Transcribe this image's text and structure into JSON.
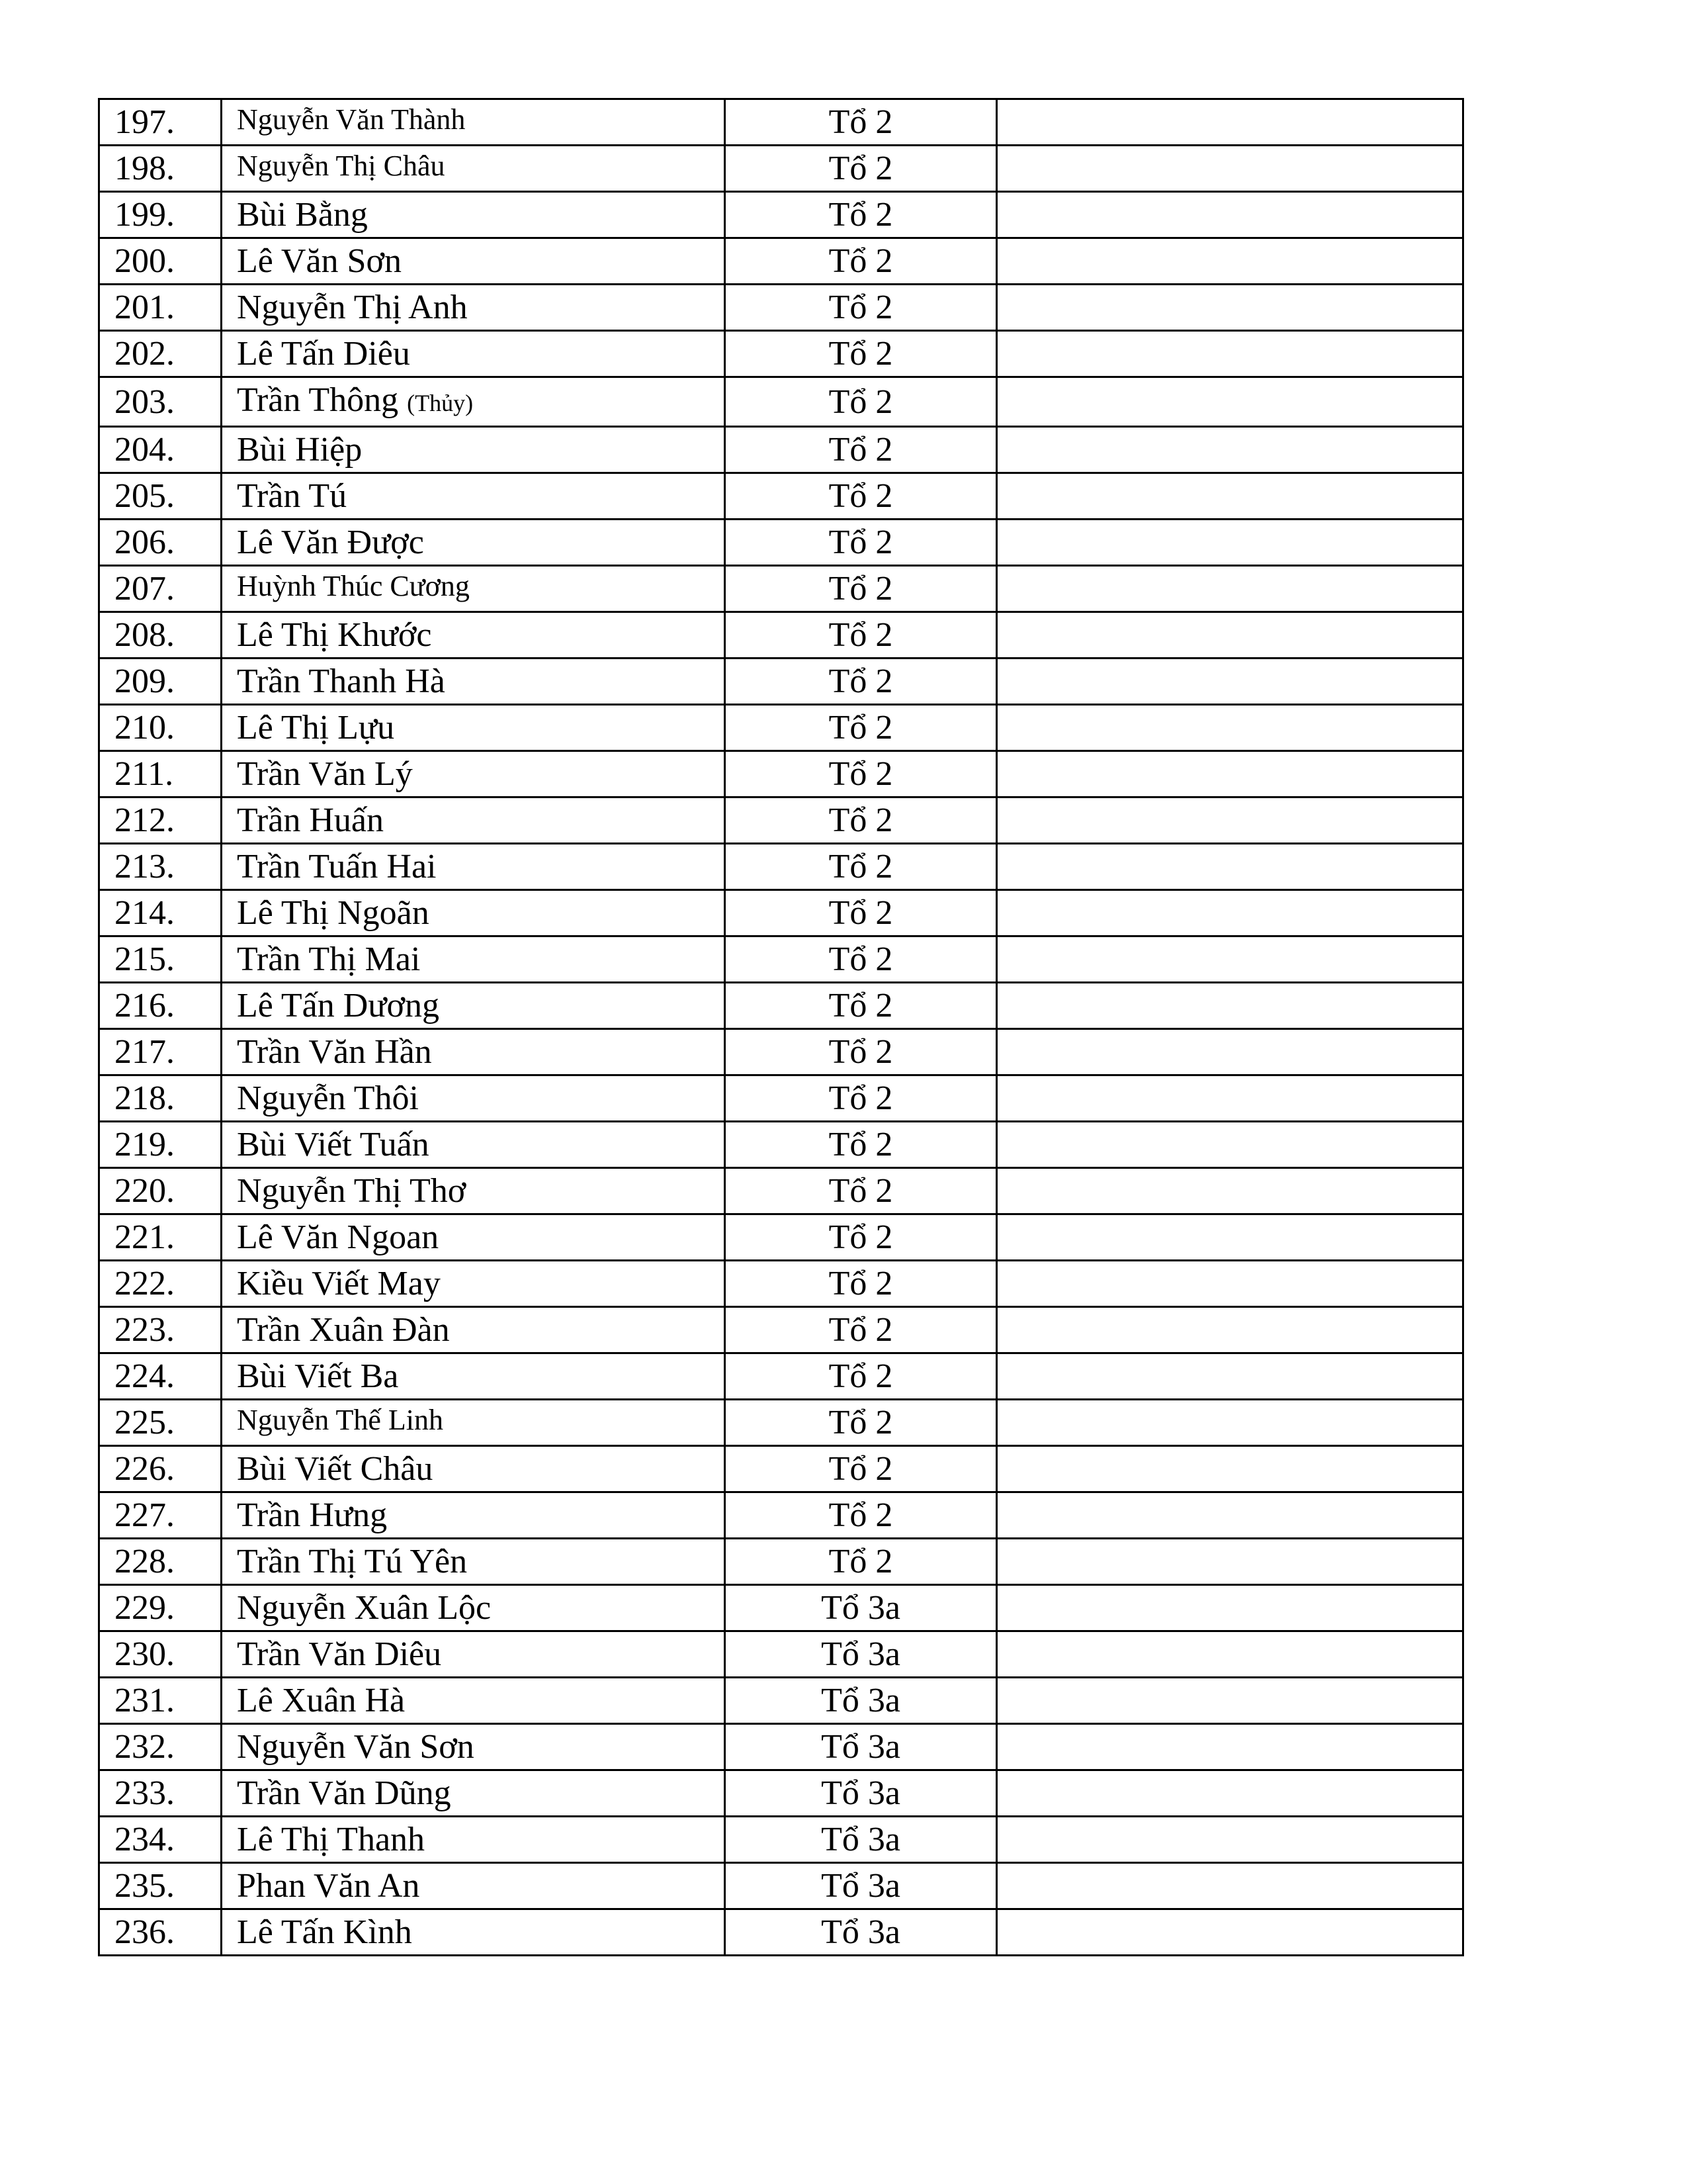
{
  "rows": [
    {
      "no": "197.",
      "name": "Nguyễn Văn Thành",
      "group": "Tổ 2",
      "small": true
    },
    {
      "no": "198.",
      "name": "Nguyễn Thị Châu",
      "group": "Tổ 2",
      "small": true
    },
    {
      "no": "199.",
      "name": "Bùi Bằng",
      "group": "Tổ 2"
    },
    {
      "no": "200.",
      "name": "Lê Văn Sơn",
      "group": "Tổ 2"
    },
    {
      "no": "201.",
      "name": "Nguyễn Thị Anh",
      "group": "Tổ 2"
    },
    {
      "no": "202.",
      "name": "Lê Tấn Diêu",
      "group": "Tổ 2"
    },
    {
      "no": "203.",
      "name": "Trần Thông",
      "suffix": "(Thủy)",
      "group": "Tổ 2"
    },
    {
      "no": "204.",
      "name": "Bùi Hiệp",
      "group": "Tổ 2"
    },
    {
      "no": "205.",
      "name": "Trần Tú",
      "group": "Tổ 2"
    },
    {
      "no": "206.",
      "name": "Lê Văn Được",
      "group": "Tổ 2"
    },
    {
      "no": "207.",
      "name": "Huỳnh Thúc Cương",
      "group": "Tổ 2",
      "small": true
    },
    {
      "no": "208.",
      "name": "Lê Thị Khước",
      "group": "Tổ 2"
    },
    {
      "no": "209.",
      "name": "Trần Thanh Hà",
      "group": "Tổ 2"
    },
    {
      "no": "210.",
      "name": "Lê Thị Lựu",
      "group": "Tổ 2"
    },
    {
      "no": "211.",
      "name": "Trần Văn Lý",
      "group": "Tổ 2"
    },
    {
      "no": "212.",
      "name": "Trần Huấn",
      "group": "Tổ 2"
    },
    {
      "no": "213.",
      "name": "Trần Tuấn Hai",
      "group": "Tổ 2"
    },
    {
      "no": "214.",
      "name": "Lê Thị Ngoãn",
      "group": "Tổ 2"
    },
    {
      "no": "215.",
      "name": "Trần Thị Mai",
      "group": "Tổ 2"
    },
    {
      "no": "216.",
      "name": "Lê Tấn Dương",
      "group": "Tổ 2"
    },
    {
      "no": "217.",
      "name": "Trần Văn Hần",
      "group": "Tổ 2"
    },
    {
      "no": "218.",
      "name": "Nguyễn Thôi",
      "group": "Tổ 2"
    },
    {
      "no": "219.",
      "name": "Bùi Viết Tuấn",
      "group": "Tổ 2"
    },
    {
      "no": "220.",
      "name": "Nguyễn Thị Thơ",
      "group": "Tổ 2"
    },
    {
      "no": "221.",
      "name": "Lê Văn Ngoan",
      "group": "Tổ 2"
    },
    {
      "no": "222.",
      "name": "Kiều Viết May",
      "group": "Tổ 2"
    },
    {
      "no": "223.",
      "name": "Trần Xuân Đàn",
      "group": "Tổ 2"
    },
    {
      "no": "224.",
      "name": "Bùi Viết Ba",
      "group": "Tổ 2"
    },
    {
      "no": "225.",
      "name": "Nguyễn Thế Linh",
      "group": "Tổ 2",
      "small": true
    },
    {
      "no": "226.",
      "name": "Bùi Viết Châu",
      "group": "Tổ 2"
    },
    {
      "no": "227.",
      "name": "Trần Hưng",
      "group": "Tổ 2"
    },
    {
      "no": "228.",
      "name": "Trần Thị Tú Yên",
      "group": "Tổ 2"
    },
    {
      "no": "229.",
      "name": "Nguyễn Xuân Lộc",
      "group": "Tổ 3a"
    },
    {
      "no": "230.",
      "name": "Trần Văn Diêu",
      "group": "Tổ 3a"
    },
    {
      "no": "231.",
      "name": "Lê Xuân Hà",
      "group": "Tổ 3a"
    },
    {
      "no": "232.",
      "name": "Nguyễn Văn Sơn",
      "group": "Tổ 3a"
    },
    {
      "no": "233.",
      "name": "Trần Văn Dũng",
      "group": "Tổ 3a"
    },
    {
      "no": "234.",
      "name": "Lê Thị Thanh",
      "group": "Tổ 3a"
    },
    {
      "no": "235.",
      "name": "Phan Văn An",
      "group": "Tổ 3a"
    },
    {
      "no": "236.",
      "name": "Lê Tấn Kình",
      "group": "Tổ 3a"
    }
  ]
}
